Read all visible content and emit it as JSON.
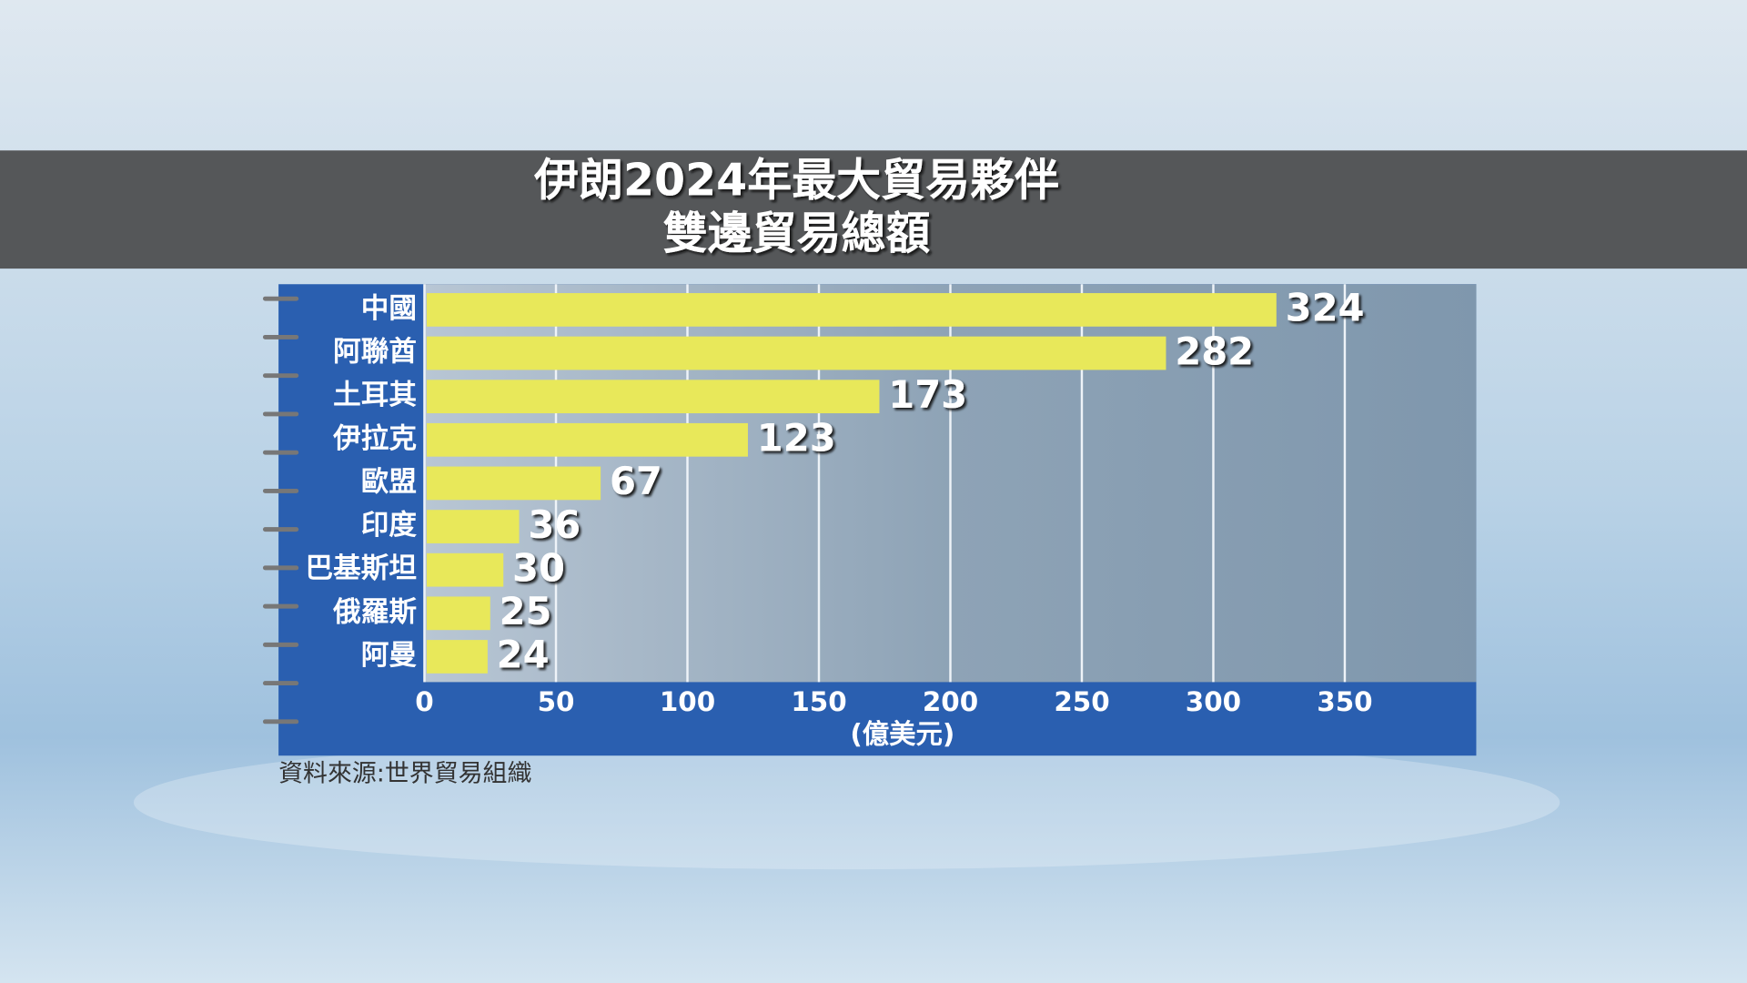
{
  "chart_data": {
    "type": "bar",
    "orientation": "horizontal",
    "title": "伊朗2024年最大貿易夥伴",
    "subtitle": "雙邊貿易總額",
    "categories": [
      "中國",
      "阿聯酋",
      "土耳其",
      "伊拉克",
      "歐盟",
      "印度",
      "巴基斯坦",
      "俄羅斯",
      "阿曼"
    ],
    "values": [
      324,
      282,
      173,
      123,
      67,
      36,
      30,
      25,
      24
    ],
    "color": "#e8e85a",
    "xlim": [
      0,
      400
    ],
    "xticks": [
      0,
      50,
      100,
      150,
      200,
      250,
      300,
      350
    ],
    "x_label": "(億美元)",
    "grid": true,
    "source": "資料來源:世界貿易組織"
  }
}
